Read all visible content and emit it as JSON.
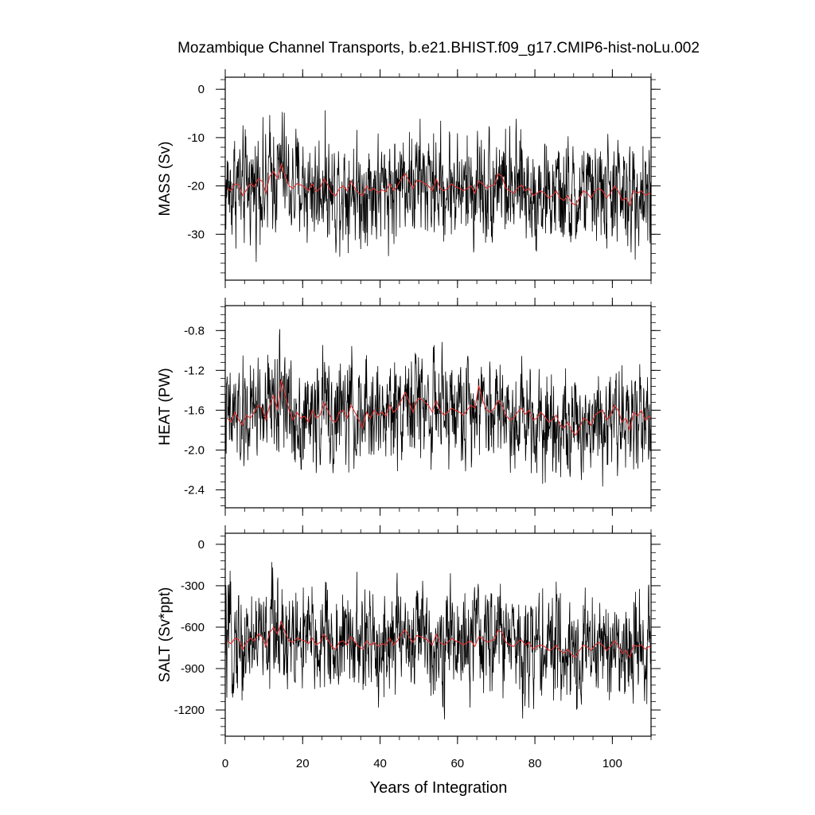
{
  "chart_data": {
    "type": "line",
    "title": "Mozambique Channel Transports, b.e21.BHIST.f09_g17.CMIP6-hist-noLu.002",
    "xlabel": "Years of Integration",
    "xlim": [
      0,
      110
    ],
    "xticks": [
      0,
      20,
      40,
      60,
      80,
      100
    ],
    "grid": false,
    "legend": "none",
    "colors": {
      "monthly": "#000000",
      "annual": "#e03030",
      "frame": "#000000"
    },
    "panels": [
      {
        "ylabel": "MASS (Sv)",
        "ylim": [
          -39.5,
          2.5
        ],
        "yticks": [
          0,
          -10,
          -20,
          -30
        ],
        "yticklabels": [
          "0",
          "-10",
          "-20",
          "-30"
        ],
        "mean": -21,
        "spread": 5.2,
        "series": [
          {
            "values": [
              -20.5,
              -21.0,
              -19.5,
              -19.8,
              -22.0,
              -20.8,
              -19.5,
              -20.2,
              -18.5,
              -19.0,
              -21.5,
              -18.0,
              -17.0,
              -18.5,
              -15.5,
              -18.0,
              -20.0,
              -20.5,
              -19.5,
              -19.8,
              -20.2,
              -21.0,
              -19.5,
              -21.2,
              -20.5,
              -18.5,
              -19.8,
              -21.5,
              -22.0,
              -20.5,
              -20.0,
              -21.0,
              -19.0,
              -20.5,
              -21.5,
              -22.0,
              -20.0,
              -21.0,
              -20.5,
              -21.5,
              -20.8,
              -21.2,
              -19.5,
              -21.0,
              -20.0,
              -18.5,
              -17.5,
              -19.0,
              -20.5,
              -18.8,
              -19.0,
              -19.5,
              -20.0,
              -21.0,
              -18.5,
              -20.5,
              -21.0,
              -20.5,
              -19.5,
              -20.2,
              -20.5,
              -21.0,
              -20.5,
              -20.0,
              -21.5,
              -19.0,
              -19.5,
              -20.5,
              -20.0,
              -19.8,
              -17.5,
              -18.0,
              -20.5,
              -21.0,
              -21.5,
              -20.5,
              -19.8,
              -21.0,
              -20.5,
              -22.0,
              -21.5,
              -21.0,
              -21.5,
              -22.5,
              -22.0,
              -21.0,
              -22.5,
              -23.0,
              -22.0,
              -23.5,
              -24.0,
              -22.5,
              -21.0,
              -21.5,
              -22.5,
              -21.0,
              -20.5,
              -21.0,
              -22.5,
              -21.5,
              -20.0,
              -21.0,
              -23.0,
              -22.5,
              -24.0,
              -21.0,
              -21.5,
              -21.0,
              -22.0,
              -21.5,
              -22.0
            ]
          }
        ]
      },
      {
        "ylabel": "HEAT (PW)",
        "ylim": [
          -2.58,
          -0.55
        ],
        "yticks": [
          -0.8,
          -1.2,
          -1.6,
          -2.0,
          -2.4
        ],
        "yticklabels": [
          "-0.8",
          "-1.2",
          "-1.6",
          "-2.0",
          "-2.4"
        ],
        "mean": -1.65,
        "spread": 0.24,
        "series": [
          {
            "values": [
              -1.68,
              -1.72,
              -1.62,
              -1.7,
              -1.75,
              -1.65,
              -1.68,
              -1.62,
              -1.55,
              -1.58,
              -1.7,
              -1.55,
              -1.45,
              -1.6,
              -1.3,
              -1.45,
              -1.6,
              -1.7,
              -1.62,
              -1.68,
              -1.66,
              -1.72,
              -1.6,
              -1.68,
              -1.65,
              -1.52,
              -1.6,
              -1.7,
              -1.72,
              -1.62,
              -1.6,
              -1.68,
              -1.55,
              -1.62,
              -1.7,
              -1.78,
              -1.62,
              -1.68,
              -1.6,
              -1.65,
              -1.62,
              -1.66,
              -1.55,
              -1.62,
              -1.58,
              -1.5,
              -1.42,
              -1.52,
              -1.62,
              -1.5,
              -1.48,
              -1.52,
              -1.55,
              -1.62,
              -1.5,
              -1.6,
              -1.65,
              -1.62,
              -1.58,
              -1.6,
              -1.62,
              -1.65,
              -1.6,
              -1.55,
              -1.58,
              -1.35,
              -1.5,
              -1.6,
              -1.62,
              -1.58,
              -1.5,
              -1.55,
              -1.65,
              -1.7,
              -1.68,
              -1.62,
              -1.58,
              -1.64,
              -1.6,
              -1.7,
              -1.68,
              -1.62,
              -1.66,
              -1.72,
              -1.7,
              -1.65,
              -1.75,
              -1.78,
              -1.72,
              -1.8,
              -1.85,
              -1.78,
              -1.68,
              -1.7,
              -1.75,
              -1.65,
              -1.62,
              -1.6,
              -1.7,
              -1.65,
              -1.55,
              -1.6,
              -1.72,
              -1.68,
              -1.8,
              -1.62,
              -1.66,
              -1.6,
              -1.7,
              -1.66,
              -1.72
            ]
          }
        ]
      },
      {
        "ylabel": "SALT (Sv*ppt)",
        "ylim": [
          -1390,
          80
        ],
        "yticks": [
          0,
          -300,
          -600,
          -900,
          -1200
        ],
        "yticklabels": [
          "0",
          "-300",
          "-600",
          "-900",
          "-1200"
        ],
        "mean": -720,
        "spread": 180,
        "series": [
          {
            "values": [
              -700,
              -720,
              -680,
              -690,
              -760,
              -710,
              -680,
              -700,
              -650,
              -670,
              -740,
              -640,
              -600,
              -650,
              -560,
              -640,
              -700,
              -710,
              -680,
              -690,
              -700,
              -720,
              -680,
              -730,
              -710,
              -650,
              -690,
              -740,
              -760,
              -710,
              -700,
              -730,
              -670,
              -710,
              -740,
              -760,
              -700,
              -730,
              -710,
              -740,
              -720,
              -730,
              -680,
              -730,
              -700,
              -650,
              -620,
              -670,
              -710,
              -660,
              -670,
              -680,
              -700,
              -730,
              -650,
              -710,
              -730,
              -710,
              -680,
              -700,
              -710,
              -730,
              -710,
              -700,
              -740,
              -670,
              -680,
              -710,
              -700,
              -690,
              -620,
              -640,
              -710,
              -730,
              -740,
              -710,
              -690,
              -730,
              -710,
              -760,
              -740,
              -730,
              -740,
              -770,
              -760,
              -730,
              -770,
              -790,
              -760,
              -800,
              -820,
              -770,
              -730,
              -740,
              -770,
              -730,
              -710,
              -730,
              -770,
              -740,
              -700,
              -730,
              -790,
              -770,
              -820,
              -730,
              -740,
              -730,
              -760,
              -740,
              -760
            ]
          }
        ]
      }
    ]
  }
}
